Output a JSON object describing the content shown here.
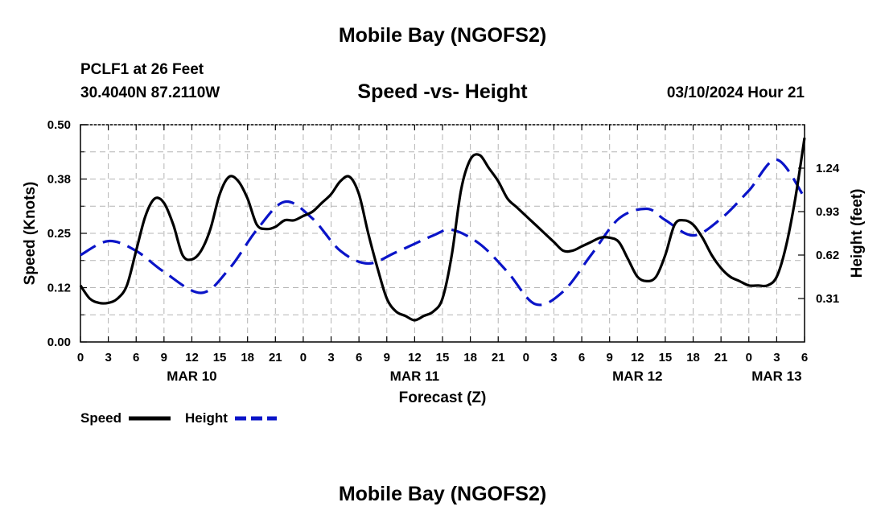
{
  "header": {
    "title": "Mobile Bay (NGOFS2)"
  },
  "station": {
    "name": "PCLF1 at 26 Feet",
    "coords": "30.4040N  87.2110W"
  },
  "date_label": "03/10/2024 Hour 21",
  "footer": {
    "title": "Mobile Bay (NGOFS2)"
  },
  "colors": {
    "speed": "#000000",
    "height": "#0a14c8",
    "grid": "#b4b4b4"
  },
  "chart_data": {
    "type": "line",
    "title": "Speed -vs- Height",
    "xlabel": "Forecast (Z)",
    "ylabel": "Speed (Knots)",
    "ylabel_right": "Height (feet)",
    "x_hours_range": [
      0,
      78
    ],
    "x_tick_hours": [
      0,
      3,
      6,
      9,
      12,
      15,
      18,
      21,
      24,
      27,
      30,
      33,
      36,
      39,
      42,
      45,
      48,
      51,
      54,
      57,
      60,
      63,
      66,
      69,
      72,
      75,
      78
    ],
    "x_tick_labels": [
      "0",
      "3",
      "6",
      "9",
      "12",
      "15",
      "18",
      "21",
      "0",
      "3",
      "6",
      "9",
      "12",
      "15",
      "18",
      "21",
      "0",
      "3",
      "6",
      "9",
      "12",
      "15",
      "18",
      "21",
      "0",
      "3",
      "6"
    ],
    "date_labels": [
      {
        "hour": 12,
        "label": "MAR 10"
      },
      {
        "hour": 36,
        "label": "MAR 11"
      },
      {
        "hour": 60,
        "label": "MAR 12"
      },
      {
        "hour": 75,
        "label": "MAR 13"
      }
    ],
    "ylim": [
      0,
      0.5
    ],
    "y_ticks": [
      0.0,
      0.125,
      0.25,
      0.375,
      0.5
    ],
    "y_tick_labels": [
      "0.00",
      "0.12",
      "0.25",
      "0.38",
      "0.50"
    ],
    "ylim_right": [
      0,
      1.55
    ],
    "y_ticks_right": [
      0.31,
      0.62,
      0.93,
      1.24
    ],
    "y_tick_labels_right": [
      "0.31",
      "0.62",
      "0.93",
      "1.24"
    ],
    "series": [
      {
        "name": "Speed",
        "axis": "left",
        "dashed": false,
        "x": [
          0,
          1,
          2,
          3,
          4,
          5,
          6,
          7,
          8,
          9,
          10,
          11,
          12,
          13,
          14,
          15,
          16,
          17,
          18,
          19,
          20,
          21,
          22,
          23,
          24,
          25,
          26,
          27,
          28,
          29,
          30,
          31,
          32,
          33,
          34,
          35,
          36,
          37,
          38,
          39,
          40,
          41,
          42,
          43,
          44,
          45,
          46,
          47,
          48,
          49,
          50,
          51,
          52,
          53,
          54,
          55,
          56,
          57,
          58,
          59,
          60,
          61,
          62,
          63,
          64,
          65,
          66,
          67,
          68,
          69,
          70,
          71,
          72,
          73,
          74,
          75,
          76,
          77,
          78
        ],
        "values": [
          0.13,
          0.1,
          0.09,
          0.09,
          0.1,
          0.13,
          0.21,
          0.29,
          0.33,
          0.32,
          0.27,
          0.2,
          0.19,
          0.21,
          0.26,
          0.34,
          0.38,
          0.37,
          0.33,
          0.27,
          0.26,
          0.265,
          0.28,
          0.28,
          0.29,
          0.3,
          0.32,
          0.34,
          0.37,
          0.38,
          0.34,
          0.25,
          0.17,
          0.1,
          0.07,
          0.06,
          0.05,
          0.06,
          0.07,
          0.1,
          0.2,
          0.35,
          0.42,
          0.43,
          0.4,
          0.37,
          0.33,
          0.31,
          0.29,
          0.27,
          0.25,
          0.23,
          0.21,
          0.21,
          0.22,
          0.23,
          0.24,
          0.24,
          0.23,
          0.19,
          0.15,
          0.14,
          0.15,
          0.2,
          0.27,
          0.28,
          0.27,
          0.24,
          0.2,
          0.17,
          0.15,
          0.14,
          0.13,
          0.13,
          0.13,
          0.15,
          0.22,
          0.33,
          0.47
        ]
      },
      {
        "name": "Height",
        "axis": "right",
        "dashed": true,
        "x": [
          0,
          3,
          6,
          9,
          13,
          16,
          19,
          22,
          25,
          28,
          31,
          34,
          38,
          40,
          43,
          46,
          49,
          52,
          55,
          58,
          61,
          63,
          66,
          69,
          72,
          75,
          78
        ],
        "values": [
          0.62,
          0.72,
          0.65,
          0.5,
          0.35,
          0.52,
          0.8,
          1.0,
          0.88,
          0.65,
          0.56,
          0.64,
          0.76,
          0.8,
          0.7,
          0.5,
          0.27,
          0.36,
          0.62,
          0.88,
          0.95,
          0.87,
          0.76,
          0.88,
          1.08,
          1.3,
          1.03
        ]
      }
    ],
    "legend": {
      "placement": "bottom-left",
      "entries": [
        "Speed",
        "Height"
      ]
    }
  }
}
